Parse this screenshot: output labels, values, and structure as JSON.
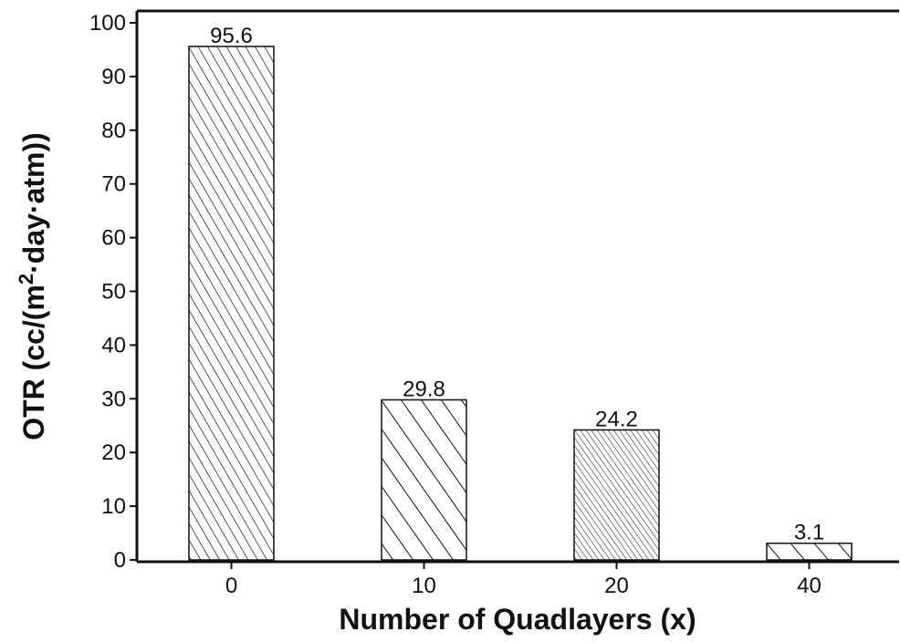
{
  "chart_data": {
    "type": "bar",
    "categories": [
      "0",
      "10",
      "20",
      "40"
    ],
    "values": [
      95.6,
      29.8,
      24.2,
      3.1
    ],
    "data_labels": [
      "95.6",
      "29.8",
      "24.2",
      "3.1"
    ],
    "title": "",
    "xlabel": "Number of Quadlayers (x)",
    "ylabel_parts": {
      "before": "OTR (cc/(m",
      "sup": "2",
      "after": "·day·atm))"
    },
    "ylim": [
      0,
      100
    ],
    "yticks": [
      0,
      10,
      20,
      30,
      40,
      50,
      60,
      70,
      80,
      90,
      100
    ],
    "grid": false,
    "legend": "none",
    "bar_fill_pattern": [
      "diagonal-hatch-dense",
      "diagonal-hatch-wide",
      "diagonal-hatch-fine",
      "diagonal-hatch-wide"
    ],
    "colors": {
      "axis": "#111111",
      "bar_fill": "#ffffff",
      "hatch": "#111111"
    }
  }
}
